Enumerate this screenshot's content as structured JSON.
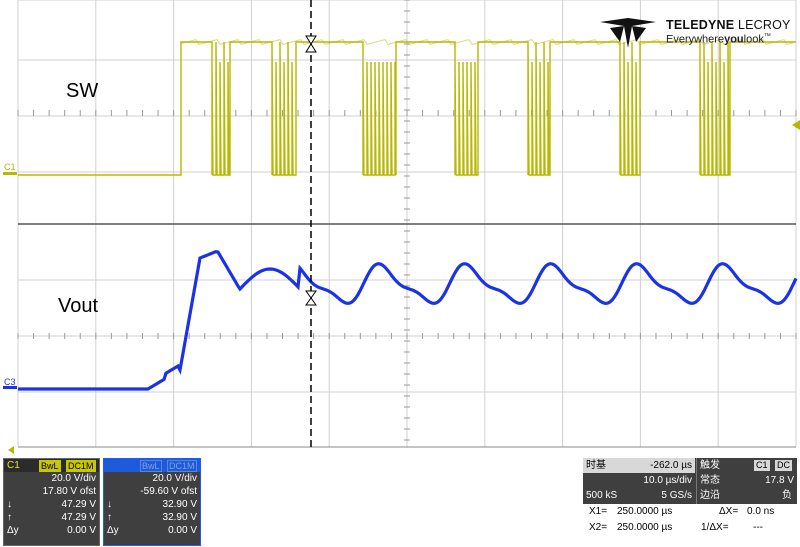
{
  "labels": {
    "sw": "SW",
    "vout": "Vout",
    "c1_marker": "C1",
    "c3_marker": "C3"
  },
  "logo": {
    "name_bold": "TELEDYNE",
    "name_light": "LECROY",
    "tagline_a": "Everywhere",
    "tagline_b": "you",
    "tagline_c": "look",
    "tm": "™"
  },
  "colors": {
    "ch1": "#b8b800",
    "ch3": "#1a33e6",
    "grid": "#d0d0d0",
    "panel_bg": "#3f3f3f"
  },
  "channel1": {
    "name": "C1",
    "badge_bwl": "BwL",
    "badge_coupling": "DC1M",
    "vdiv": "20.0 V/div",
    "offset": "17.80 V ofst",
    "cursor_down_label": "↓",
    "cursor_down": "47.29 V",
    "cursor_up_label": "↑",
    "cursor_up": "47.29 V",
    "delta_label": "Δy",
    "delta": "0.00 V"
  },
  "channel3": {
    "name": "C3",
    "badge_bwl": "BwL",
    "badge_coupling": "DC1M",
    "vdiv": "20.0 V/div",
    "offset": "-59.60 V ofst",
    "cursor_down_label": "↓",
    "cursor_down": "32.90 V",
    "cursor_up_label": "↑",
    "cursor_up": "32.90 V",
    "delta_label": "Δy",
    "delta": "0.00 V"
  },
  "timebase": {
    "label": "时基",
    "delay": "-262.0 µs",
    "tdiv": "10.0 µs/div",
    "samples": "500 kS",
    "rate": "5 GS/s"
  },
  "trigger": {
    "label": "触发",
    "badge_ch": "C1",
    "badge_coupling": "DC",
    "mode": "常态",
    "level": "17.8 V",
    "type": "边沿",
    "slope": "负"
  },
  "cursors": {
    "x1_label": "X1=",
    "x1": "250.0000 µs",
    "dx_label": "ΔX=",
    "dx": "0.0 ns",
    "x2_label": "X2=",
    "x2": "250.0000 µs",
    "inv_dx_label": "1/ΔX=",
    "inv_dx": "---"
  }
}
